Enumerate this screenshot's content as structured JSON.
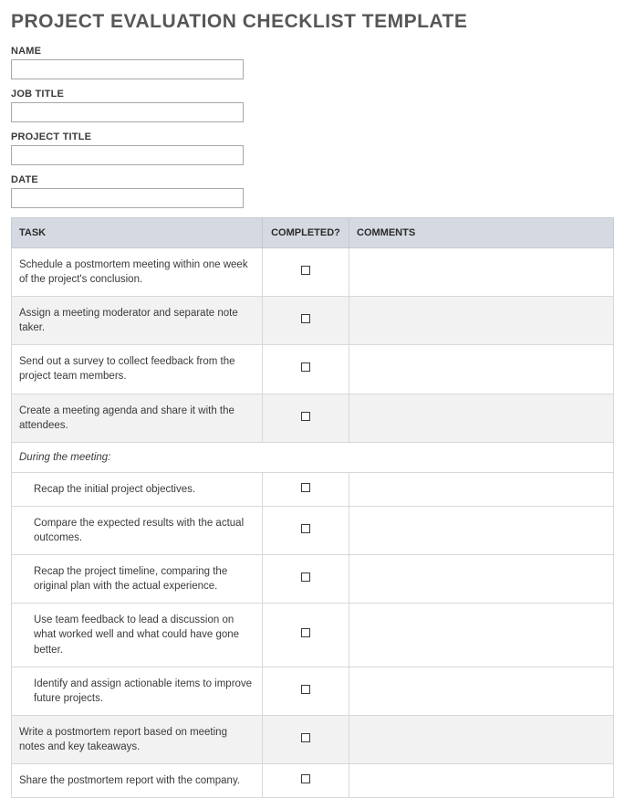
{
  "title": "PROJECT EVALUATION CHECKLIST TEMPLATE",
  "fields": [
    {
      "label": "NAME",
      "value": ""
    },
    {
      "label": "JOB TITLE",
      "value": ""
    },
    {
      "label": "PROJECT TITLE",
      "value": ""
    },
    {
      "label": "DATE",
      "value": ""
    }
  ],
  "table": {
    "headers": {
      "task": "TASK",
      "completed": "COMPLETED?",
      "comments": "COMMENTS"
    },
    "rows": [
      {
        "type": "item",
        "task": "Schedule a postmortem meeting within one week of the project's conclusion.",
        "alt": false,
        "indented": false
      },
      {
        "type": "item",
        "task": "Assign a meeting moderator and separate note taker.",
        "alt": true,
        "indented": false
      },
      {
        "type": "item",
        "task": "Send out a survey to collect feedback from the project team members.",
        "alt": false,
        "indented": false
      },
      {
        "type": "item",
        "task": "Create a meeting agenda and share it with the attendees.",
        "alt": true,
        "indented": false
      },
      {
        "type": "section",
        "task": "During the meeting:",
        "alt": false
      },
      {
        "type": "item",
        "task": "Recap the initial project objectives.",
        "alt": false,
        "indented": true
      },
      {
        "type": "item",
        "task": "Compare the expected results with the actual outcomes.",
        "alt": false,
        "indented": true
      },
      {
        "type": "item",
        "task": "Recap the project timeline, comparing the original plan with the actual experience.",
        "alt": false,
        "indented": true
      },
      {
        "type": "item",
        "task": "Use team feedback to lead a discussion on what worked well and what could have gone better.",
        "alt": false,
        "indented": true
      },
      {
        "type": "item",
        "task": "Identify and assign actionable items to improve future projects.",
        "alt": false,
        "indented": true
      },
      {
        "type": "item",
        "task": "Write a postmortem report based on meeting notes and key takeaways.",
        "alt": true,
        "indented": false
      },
      {
        "type": "item",
        "task": "Share the postmortem report with the company.",
        "alt": false,
        "indented": false
      }
    ]
  },
  "colors": {
    "header_bg": "#d4d9e2",
    "alt_row_bg": "#f2f2f2",
    "border": "#d8d8d8",
    "text": "#3a3a3a",
    "title": "#575757"
  }
}
